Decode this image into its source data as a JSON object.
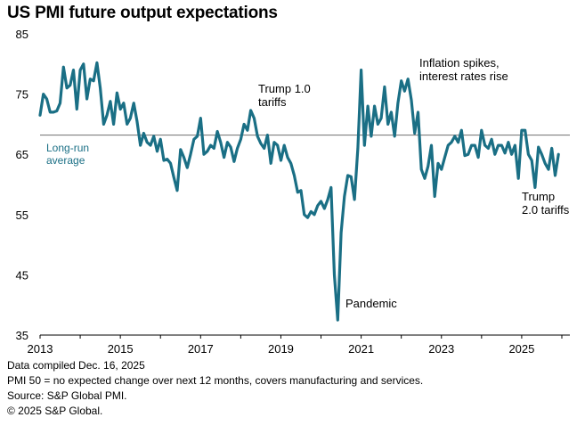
{
  "chart_data": {
    "type": "line",
    "title": "US PMI future output expectations",
    "xlabel": "",
    "ylabel": "",
    "ylim": [
      35,
      85
    ],
    "xlim": [
      2013,
      2026.2
    ],
    "y_ticks": [
      35,
      45,
      55,
      65,
      75,
      85
    ],
    "x_ticks": [
      2013,
      2015,
      2017,
      2019,
      2021,
      2023,
      2025
    ],
    "grid": false,
    "legend": "none",
    "colors": {
      "line": "#1a6f85",
      "reference": "#7f7f7f",
      "axis": "#000000",
      "reference_label": "#1a6f85"
    },
    "reference_line": {
      "value": 68.2,
      "label_lines": [
        "Long-run",
        "average"
      ]
    },
    "annotations": [
      {
        "lines": [
          "Trump 1.0",
          "tariffs"
        ]
      },
      {
        "lines": [
          "Inflation spikes,",
          "interest rates rise"
        ]
      },
      {
        "lines": [
          "Pandemic"
        ]
      },
      {
        "lines": [
          "Trump",
          "2.0 tariffs"
        ]
      }
    ],
    "series": [
      {
        "x": [
          2013.0,
          2013.083,
          2013.167,
          2013.25,
          2013.333,
          2013.417,
          2013.5,
          2013.583,
          2013.667,
          2013.75,
          2013.833,
          2013.917,
          2014.0,
          2014.083,
          2014.167,
          2014.25,
          2014.333,
          2014.417,
          2014.5,
          2014.583,
          2014.667,
          2014.75,
          2014.833,
          2014.917,
          2015.0,
          2015.083,
          2015.167,
          2015.25,
          2015.333,
          2015.417,
          2015.5,
          2015.583,
          2015.667,
          2015.75,
          2015.833,
          2015.917,
          2016.0,
          2016.083,
          2016.167,
          2016.25,
          2016.333,
          2016.417,
          2016.5,
          2016.583,
          2016.667,
          2016.75,
          2016.833,
          2016.917,
          2017.0,
          2017.083,
          2017.167,
          2017.25,
          2017.333,
          2017.417,
          2017.5,
          2017.583,
          2017.667,
          2017.75,
          2017.833,
          2017.917,
          2018.0,
          2018.083,
          2018.167,
          2018.25,
          2018.333,
          2018.417,
          2018.5,
          2018.583,
          2018.667,
          2018.75,
          2018.833,
          2018.917,
          2019.0,
          2019.083,
          2019.167,
          2019.25,
          2019.333,
          2019.417,
          2019.5,
          2019.583,
          2019.667,
          2019.75,
          2019.833,
          2019.917,
          2020.0,
          2020.083,
          2020.167,
          2020.25,
          2020.333,
          2020.417,
          2020.5,
          2020.583,
          2020.667,
          2020.75,
          2020.833,
          2020.917,
          2021.0,
          2021.083,
          2021.167,
          2021.25,
          2021.333,
          2021.417,
          2021.5,
          2021.583,
          2021.667,
          2021.75,
          2021.833,
          2021.917,
          2022.0,
          2022.083,
          2022.167,
          2022.25,
          2022.333,
          2022.417,
          2022.5,
          2022.583,
          2022.667,
          2022.75,
          2022.833,
          2022.917,
          2023.0,
          2023.083,
          2023.167,
          2023.25,
          2023.333,
          2023.417,
          2023.5,
          2023.583,
          2023.667,
          2023.75,
          2023.833,
          2023.917,
          2024.0,
          2024.083,
          2024.167,
          2024.25,
          2024.333,
          2024.417,
          2024.5,
          2024.583,
          2024.667,
          2024.75,
          2024.833,
          2024.917,
          2025.0,
          2025.083,
          2025.167,
          2025.25,
          2025.333,
          2025.417,
          2025.5,
          2025.583,
          2025.667,
          2025.75,
          2025.833,
          2025.917
        ],
        "y": [
          71.5,
          75.0,
          74.2,
          72.0,
          72.0,
          72.2,
          73.5,
          79.5,
          76.0,
          76.5,
          79.0,
          72.5,
          79.0,
          80.0,
          74.2,
          77.5,
          77.2,
          80.2,
          76.0,
          70.0,
          71.5,
          73.8,
          70.0,
          75.2,
          72.5,
          73.5,
          70.0,
          71.0,
          73.5,
          70.5,
          66.5,
          68.5,
          67.0,
          66.5,
          68.0,
          65.5,
          67.5,
          64.0,
          64.2,
          63.5,
          61.2,
          59.0,
          65.8,
          64.5,
          62.8,
          65.0,
          67.5,
          68.0,
          71.0,
          65.0,
          65.5,
          66.5,
          66.0,
          68.8,
          67.0,
          64.5,
          67.0,
          66.2,
          63.8,
          66.0,
          67.5,
          70.0,
          69.0,
          72.3,
          71.0,
          68.0,
          66.8,
          66.0,
          68.2,
          63.5,
          67.0,
          66.5,
          64.0,
          66.5,
          64.5,
          63.5,
          61.5,
          58.7,
          59.0,
          55.0,
          54.5,
          55.5,
          55.0,
          56.5,
          57.2,
          56.0,
          57.5,
          59.5,
          45.0,
          37.5,
          52.0,
          58.0,
          61.5,
          61.3,
          57.5,
          66.0,
          79.0,
          66.5,
          73.0,
          68.0,
          73.0,
          70.0,
          71.0,
          76.2,
          70.0,
          72.0,
          68.0,
          73.5,
          77.2,
          75.5,
          77.5,
          74.0,
          68.5,
          72.0,
          62.5,
          61.0,
          63.0,
          66.5,
          58.0,
          63.5,
          62.5,
          64.5,
          66.5,
          67.0,
          68.0,
          67.0,
          69.0,
          64.8,
          65.0,
          66.5,
          66.5,
          64.5,
          69.0,
          66.5,
          66.0,
          67.5,
          65.0,
          66.5,
          66.5,
          65.2,
          67.0,
          65.0,
          66.5,
          61.0,
          69.0,
          69.0,
          65.0,
          64.0,
          59.5,
          66.2,
          65.0,
          63.5,
          62.5,
          66.0,
          61.5,
          65.0
        ]
      }
    ]
  },
  "footnotes": {
    "line1": "Data compiled Dec. 16, 2025",
    "line2": "PMI 50 =  no expected change over next 12 months, covers manufacturing and services.",
    "line3": "Source: S&P Global PMI.",
    "line4": "© 2025 S&P Global."
  }
}
